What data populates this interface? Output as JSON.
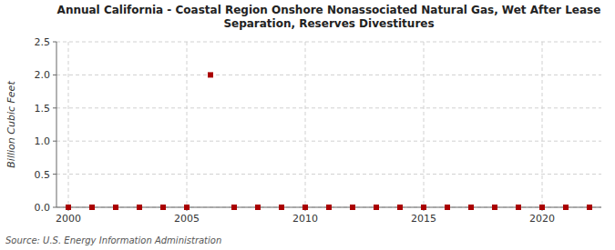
{
  "chart_data": {
    "type": "scatter",
    "title": "Annual California - Coastal Region Onshore Nonassociated Natural Gas, Wet After Lease\nSeparation, Reserves Divestitures",
    "ylabel": "Billion Cubic Feet",
    "source": "Source: U.S. Energy Information Administration",
    "x": [
      2000,
      2001,
      2002,
      2003,
      2004,
      2005,
      2006,
      2007,
      2008,
      2009,
      2010,
      2011,
      2012,
      2013,
      2014,
      2015,
      2016,
      2017,
      2018,
      2019,
      2020,
      2021,
      2022
    ],
    "values": [
      0,
      0,
      0,
      0,
      0,
      0,
      2.0,
      0,
      0,
      0,
      0,
      0,
      0,
      0,
      0,
      0,
      0,
      0,
      0,
      0,
      0,
      0,
      0
    ],
    "color": "#aa0000",
    "marker": "square",
    "xlim": [
      1999.5,
      2022.5
    ],
    "xticks": [
      2000,
      2005,
      2010,
      2015,
      2020
    ],
    "ylim": [
      0,
      2.5
    ],
    "yticks": [
      {
        "value": 0.0,
        "label": "0.0"
      },
      0.5,
      {
        "value": 1.0,
        "label": "1.0"
      },
      1.5,
      {
        "value": 2.0,
        "label": "2.0"
      },
      2.5
    ],
    "grid": true
  }
}
